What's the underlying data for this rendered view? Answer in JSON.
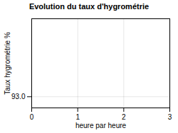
{
  "chart_data": {
    "type": "line",
    "title": "Evolution du taux d'hygrométrie",
    "xlabel": "heure par heure",
    "ylabel": "Taux hygrométrie %",
    "series": [],
    "xlim": [
      0,
      3
    ],
    "xticks": [
      0,
      1,
      2,
      3
    ],
    "ylim": [
      92.5,
      96.5
    ],
    "yticks": [
      {
        "value": 93.0,
        "label": "93.0"
      }
    ],
    "grid": true
  }
}
